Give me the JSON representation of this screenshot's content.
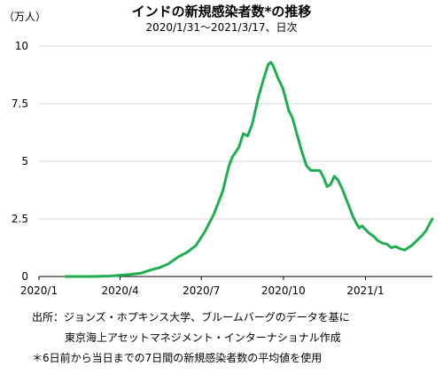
{
  "chart_data": {
    "type": "line",
    "title": "インドの新規感染者数*の推移",
    "subtitle": "2020/1/31～2021/3/17、日次",
    "yunit": "（万人）",
    "ylim": [
      0,
      10
    ],
    "yticks": [
      0,
      2.5,
      5,
      7.5,
      10
    ],
    "ytick_labels": [
      "0",
      "2.5",
      "5",
      "7.5",
      "10"
    ],
    "xlim": [
      "2020-01-01",
      "2021-03-17"
    ],
    "xticks": [
      "2020-01-01",
      "2020-04-01",
      "2020-07-01",
      "2020-10-01",
      "2021-01-01"
    ],
    "xtick_labels": [
      "2020/1",
      "2020/4",
      "2020/7",
      "2020/10",
      "2021/1"
    ],
    "grid": "horizontal",
    "line_color": "#1fae4f",
    "series": [
      {
        "points": [
          [
            "2020-01-31",
            0
          ],
          [
            "2020-03-01",
            0
          ],
          [
            "2020-03-20",
            0.02
          ],
          [
            "2020-04-10",
            0.08
          ],
          [
            "2020-04-25",
            0.15
          ],
          [
            "2020-05-05",
            0.28
          ],
          [
            "2020-05-15",
            0.38
          ],
          [
            "2020-05-25",
            0.55
          ],
          [
            "2020-06-05",
            0.85
          ],
          [
            "2020-06-15",
            1.05
          ],
          [
            "2020-06-25",
            1.35
          ],
          [
            "2020-07-05",
            1.95
          ],
          [
            "2020-07-15",
            2.7
          ],
          [
            "2020-07-25",
            3.7
          ],
          [
            "2020-08-01",
            4.8
          ],
          [
            "2020-08-05",
            5.2
          ],
          [
            "2020-08-12",
            5.6
          ],
          [
            "2020-08-17",
            6.2
          ],
          [
            "2020-08-22",
            6.1
          ],
          [
            "2020-08-27",
            6.6
          ],
          [
            "2020-09-03",
            7.8
          ],
          [
            "2020-09-09",
            8.6
          ],
          [
            "2020-09-14",
            9.2
          ],
          [
            "2020-09-17",
            9.3
          ],
          [
            "2020-09-20",
            9.1
          ],
          [
            "2020-09-25",
            8.6
          ],
          [
            "2020-09-30",
            8.2
          ],
          [
            "2020-10-03",
            7.8
          ],
          [
            "2020-10-07",
            7.2
          ],
          [
            "2020-10-11",
            6.9
          ],
          [
            "2020-10-16",
            6.2
          ],
          [
            "2020-10-21",
            5.5
          ],
          [
            "2020-10-27",
            4.8
          ],
          [
            "2020-11-01",
            4.6
          ],
          [
            "2020-11-06",
            4.6
          ],
          [
            "2020-11-11",
            4.6
          ],
          [
            "2020-11-15",
            4.3
          ],
          [
            "2020-11-19",
            3.9
          ],
          [
            "2020-11-23",
            4.0
          ],
          [
            "2020-11-27",
            4.35
          ],
          [
            "2020-12-01",
            4.2
          ],
          [
            "2020-12-06",
            3.8
          ],
          [
            "2020-12-11",
            3.3
          ],
          [
            "2020-12-15",
            2.9
          ],
          [
            "2020-12-18",
            2.6
          ],
          [
            "2020-12-22",
            2.3
          ],
          [
            "2020-12-25",
            2.1
          ],
          [
            "2020-12-28",
            2.2
          ],
          [
            "2021-01-02",
            2.0
          ],
          [
            "2021-01-06",
            1.85
          ],
          [
            "2021-01-10",
            1.75
          ],
          [
            "2021-01-15",
            1.55
          ],
          [
            "2021-01-20",
            1.45
          ],
          [
            "2021-01-25",
            1.4
          ],
          [
            "2021-01-30",
            1.25
          ],
          [
            "2021-02-04",
            1.3
          ],
          [
            "2021-02-09",
            1.2
          ],
          [
            "2021-02-14",
            1.15
          ],
          [
            "2021-02-18",
            1.25
          ],
          [
            "2021-02-22",
            1.35
          ],
          [
            "2021-02-26",
            1.5
          ],
          [
            "2021-03-02",
            1.65
          ],
          [
            "2021-03-06",
            1.8
          ],
          [
            "2021-03-10",
            2.0
          ],
          [
            "2021-03-14",
            2.3
          ],
          [
            "2021-03-17",
            2.5
          ]
        ]
      }
    ]
  },
  "notes": [
    "出所：ジョンズ・ホプキンス大学、ブルームバーグのデータを基に",
    "東京海上アセットマネジメント・インターナショナル作成",
    "＊6日前から当日までの7日間の新規感染者数の平均値を使用"
  ]
}
